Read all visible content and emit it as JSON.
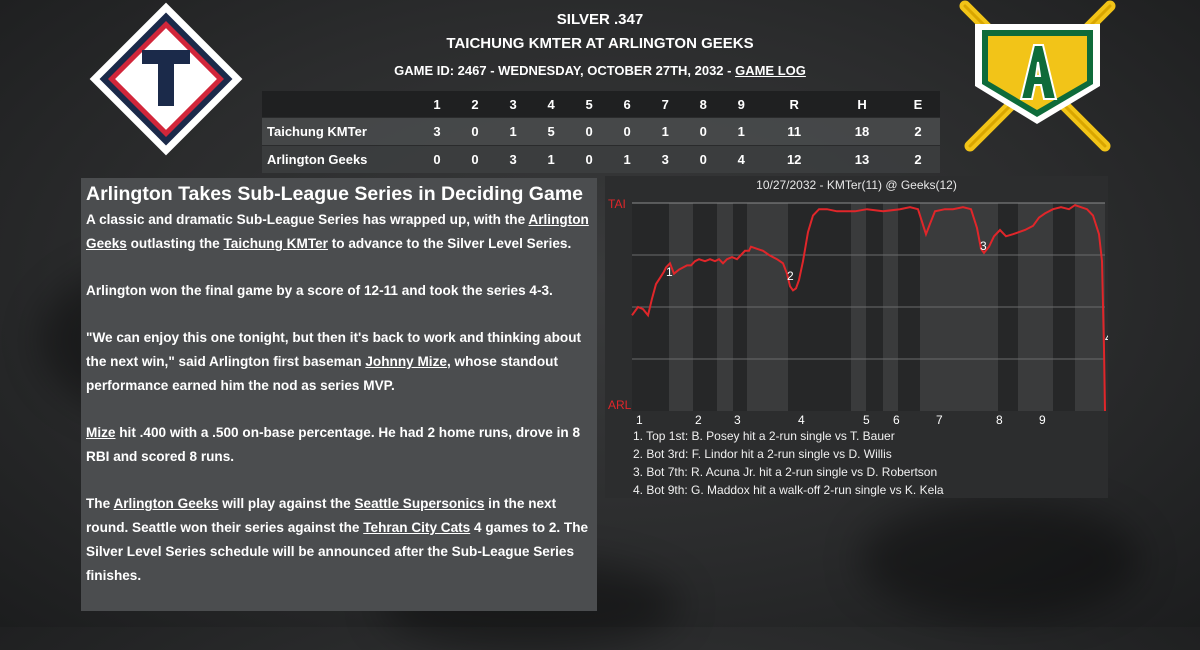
{
  "header": {
    "league_line": "SILVER .347",
    "matchup": "TAICHUNG KMTER AT ARLINGTON GEEKS",
    "game_info": "GAME ID: 2467 - WEDNESDAY, OCTOBER 27TH, 2032 - ",
    "game_log_link": "GAME LOG"
  },
  "logos": {
    "away": {
      "letter": "T",
      "team": "Taichung KMTer",
      "colors": {
        "navy": "#1b2a4a",
        "red": "#d1263a",
        "white": "#ffffff"
      }
    },
    "home": {
      "letter": "A",
      "team": "Arlington Geeks",
      "colors": {
        "green": "#0e6b3a",
        "gold": "#f2c418",
        "white": "#ffffff"
      }
    }
  },
  "linescore": {
    "columns": [
      "1",
      "2",
      "3",
      "4",
      "5",
      "6",
      "7",
      "8",
      "9",
      "R",
      "H",
      "E"
    ],
    "rows": [
      {
        "team": "Taichung KMTer",
        "values": [
          "3",
          "0",
          "1",
          "5",
          "0",
          "0",
          "1",
          "0",
          "1",
          "11",
          "18",
          "2"
        ]
      },
      {
        "team": "Arlington Geeks",
        "values": [
          "0",
          "0",
          "3",
          "1",
          "0",
          "1",
          "3",
          "0",
          "4",
          "12",
          "13",
          "2"
        ]
      }
    ]
  },
  "article": {
    "headline": "Arlington Takes Sub-League Series in Deciding Game",
    "p1": [
      {
        "t": "A classic and dramatic Sub-League Series has wrapped up, with the "
      },
      {
        "t": "Arlington Geeks",
        "link": true
      },
      {
        "t": " outlasting the "
      },
      {
        "t": "Taichung KMTer",
        "link": true
      },
      {
        "t": " to advance to the Silver Level Series."
      }
    ],
    "p2": "Arlington won the final game by a score of 12-11 and took the series 4-3.",
    "p3": [
      {
        "t": "\"We can enjoy this one tonight, but then it's back to work and thinking about the next win,\" said Arlington first baseman "
      },
      {
        "t": "Johnny Mize",
        "link": true
      },
      {
        "t": ", whose standout performance earned him the nod as series MVP."
      }
    ],
    "p4": [
      {
        "t": "Mize",
        "link": true
      },
      {
        "t": " hit .400 with a .500 on-base percentage. He had 2 home runs, drove in 8 RBI and scored 8 runs."
      }
    ],
    "p5": [
      {
        "t": "The "
      },
      {
        "t": "Arlington Geeks",
        "link": true
      },
      {
        "t": " will play against the "
      },
      {
        "t": "Seattle Supersonics",
        "link": true
      },
      {
        "t": " in the next round. Seattle won their series against the "
      },
      {
        "t": "Tehran City Cats",
        "link": true
      },
      {
        "t": " 4 games to 2. The Silver Level Series schedule will be announced after the Sub-League Series finishes."
      }
    ]
  },
  "chart_data": {
    "type": "line",
    "title": "10/27/2032 - KMTer(11) @ Geeks(12)",
    "y_top_label": "TAI",
    "y_bottom_label": "ARL",
    "ylim": [
      0,
      100
    ],
    "line_color": "#e0262a",
    "inning_labels": [
      "1",
      "2",
      "3",
      "4",
      "5",
      "6",
      "7",
      "8",
      "9"
    ],
    "annotations": [
      "1",
      "2",
      "3",
      "4"
    ],
    "notes": [
      "1. Top 1st: B. Posey hit a 2-run single vs T. Bauer",
      "2. Bot 3rd: F. Lindor hit a 2-run single vs D. Willis",
      "3. Bot 7th: R. Acuna Jr. hit a 2-run single vs D. Robertson",
      "4. Bot 9th: G. Maddox hit a walk-off 2-run single vs K. Kela"
    ]
  }
}
